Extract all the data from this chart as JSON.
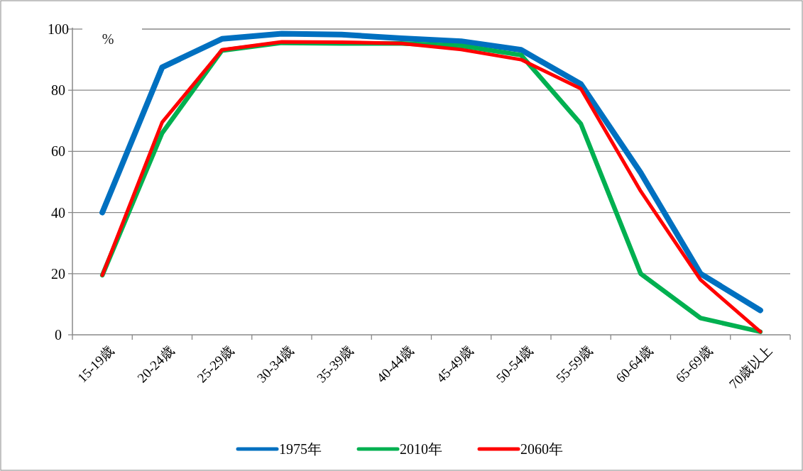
{
  "chart_data": {
    "type": "line",
    "ylabel": "%",
    "categories": [
      "15-19歳",
      "20-24歳",
      "25-29歳",
      "30-34歳",
      "35-39歳",
      "40-44歳",
      "45-49歳",
      "50-54歳",
      "55-59歳",
      "60-64歳",
      "65-69歳",
      "70歳以上"
    ],
    "series": [
      {
        "name": "1975年",
        "color": "#0070c0",
        "values": [
          40,
          87.5,
          96.8,
          98.5,
          98.2,
          97,
          96,
          93.2,
          82,
          53,
          20,
          8
        ]
      },
      {
        "name": "2010年",
        "color": "#00b050",
        "values": [
          19.5,
          66,
          93,
          95.5,
          95.3,
          95.3,
          94.5,
          91.5,
          69,
          20,
          5.5,
          1
        ]
      },
      {
        "name": "2060年",
        "color": "#ff0000",
        "values": [
          19.5,
          69.5,
          93.2,
          95.8,
          95.7,
          95.3,
          93.3,
          90,
          80.5,
          47,
          18,
          1
        ]
      }
    ],
    "ylim": [
      0,
      100
    ],
    "yticks": [
      0,
      20,
      40,
      60,
      80,
      100
    ],
    "grid": "y",
    "legend": "bottom",
    "marker": "none",
    "line_style": "solid"
  }
}
